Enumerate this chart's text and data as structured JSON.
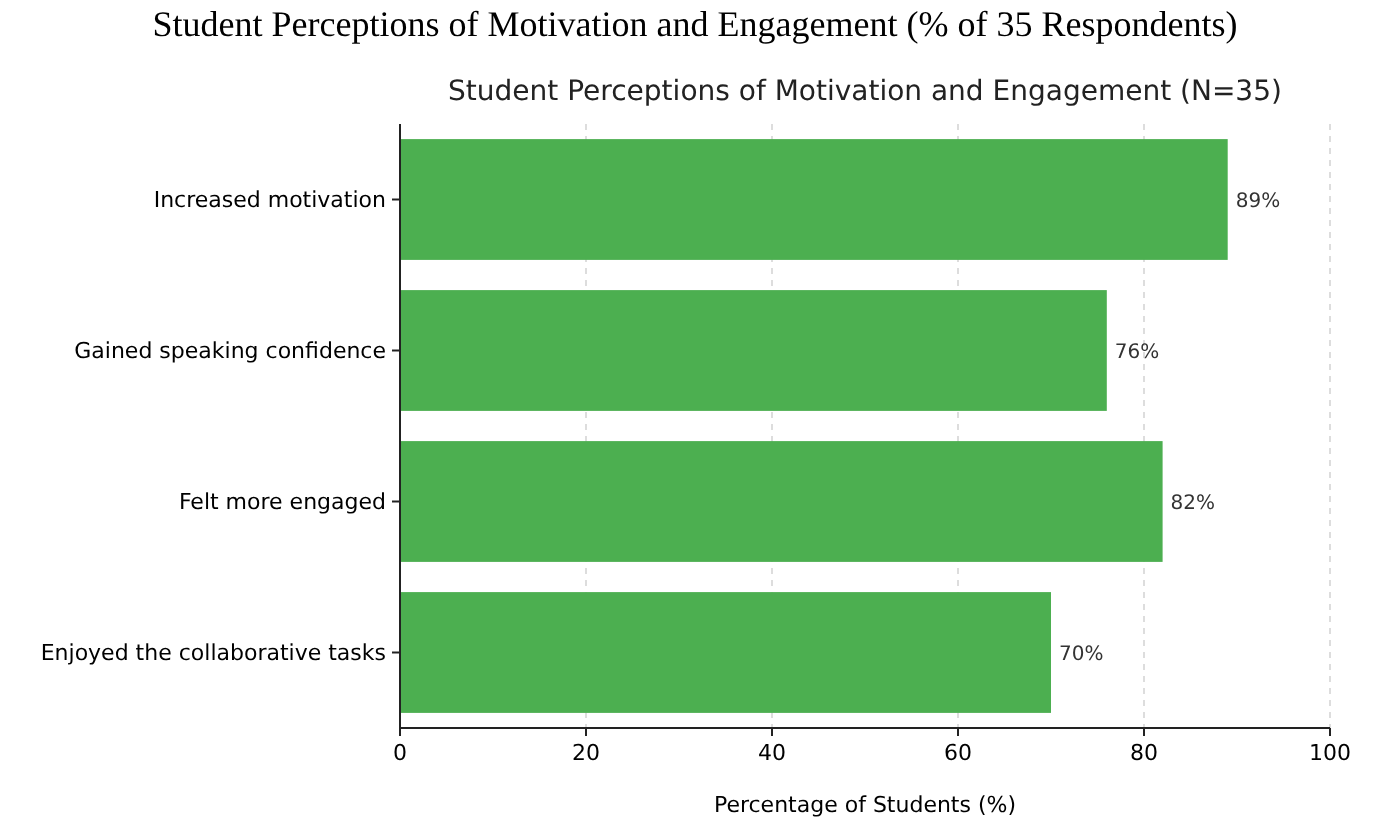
{
  "chart_data": {
    "type": "bar",
    "orientation": "horizontal",
    "title": "Student Perceptions of Motivation and Engagement (N=35)",
    "annotations": [
      "Student Perceptions of Motivation and Engagement (% of 35 Respondents)"
    ],
    "categories": [
      "Increased motivation",
      "Gained speaking confidence",
      "Felt more engaged",
      "Enjoyed the collaborative tasks"
    ],
    "values": [
      89,
      76,
      82,
      70
    ],
    "value_labels": [
      "89%",
      "76%",
      "82%",
      "70%"
    ],
    "color": "#4caf50",
    "xlabel": "Percentage of Students (%)",
    "xlim": [
      0,
      100
    ],
    "xticks": [
      0,
      20,
      40,
      60,
      80,
      100
    ],
    "grid": "x"
  }
}
